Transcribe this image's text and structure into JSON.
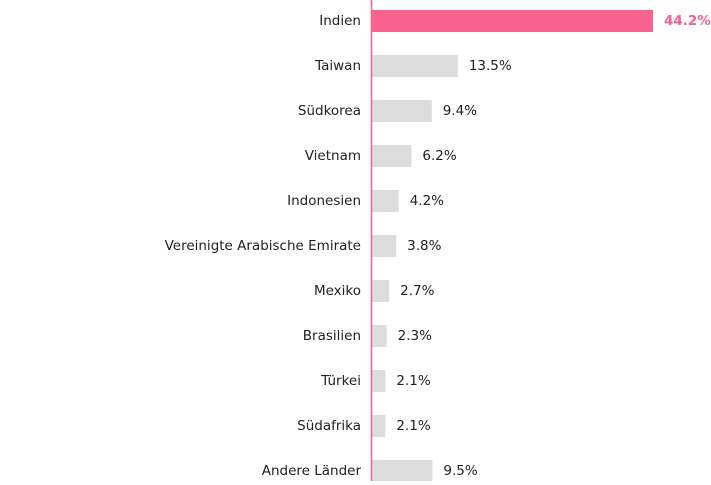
{
  "chart_data": {
    "type": "hbar",
    "categories": [
      "Indien",
      "Taiwan",
      "Südkorea",
      "Vietnam",
      "Indonesien",
      "Vereinigte Arabische Emirate",
      "Mexiko",
      "Brasilien",
      "Türkei",
      "Südafrika",
      "Andere Länder"
    ],
    "values": [
      44.2,
      13.5,
      9.4,
      6.2,
      4.2,
      3.8,
      2.7,
      2.3,
      2.1,
      2.1,
      9.5
    ],
    "value_labels": [
      "44.2%",
      "13.5%",
      "9.4%",
      "6.2%",
      "4.2%",
      "3.8%",
      "2.7%",
      "2.3%",
      "2.1%",
      "2.1%",
      "9.5%"
    ],
    "colors": [
      "#f7628f",
      "#dcdcdc",
      "#dcdcdc",
      "#dcdcdc",
      "#dcdcdc",
      "#dcdcdc",
      "#dcdcdc",
      "#dcdcdc",
      "#dcdcdc",
      "#dcdcdc",
      "#dcdcdc"
    ],
    "label_colors": [
      "#f7628f",
      "#222222",
      "#222222",
      "#222222",
      "#222222",
      "#222222",
      "#222222",
      "#222222",
      "#222222",
      "#222222",
      "#222222"
    ],
    "axis_color": "#f7628f"
  }
}
